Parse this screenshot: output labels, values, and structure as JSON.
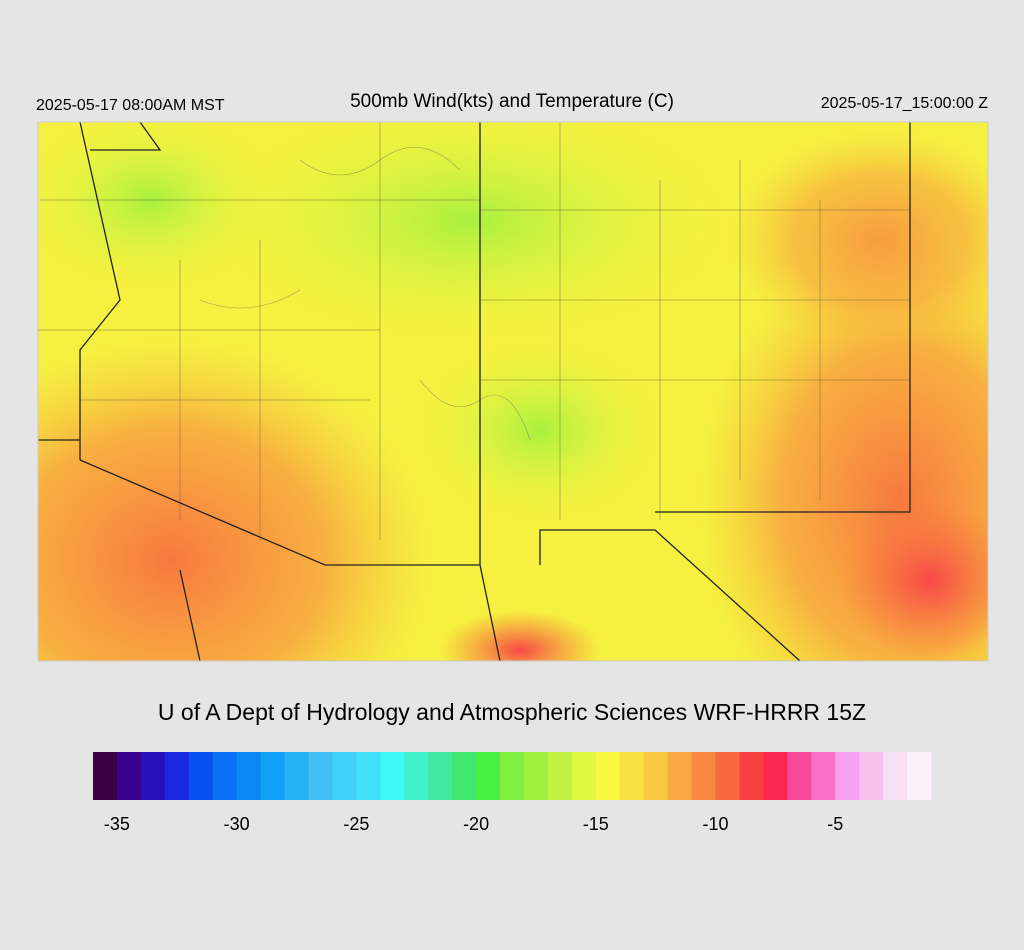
{
  "header": {
    "local_time": "2025-05-17 08:00AM MST",
    "title": "500mb Wind(kts) and Temperature (C)",
    "utc_time": "2025-05-17_15:00:00 Z"
  },
  "footer": {
    "credit": "U of A Dept of Hydrology and Atmospheric Sciences WRF-HRRR 15Z"
  },
  "colorbar": {
    "range": [
      -36,
      -1
    ],
    "colors": [
      "#3a0040",
      "#3a0090",
      "#2a10b8",
      "#1a28e0",
      "#0a50f0",
      "#0a70f5",
      "#0a88f5",
      "#10a0f5",
      "#28b0f5",
      "#40c0f5",
      "#40d0f8",
      "#40e0fa",
      "#40f8f8",
      "#40f0c8",
      "#40e8a0",
      "#40e870",
      "#48f040",
      "#80f040",
      "#a0f040",
      "#c0f040",
      "#e0f840",
      "#f8f840",
      "#f8e040",
      "#f8c840",
      "#f8a840",
      "#f88840",
      "#f86840",
      "#f84040",
      "#f82850",
      "#f84898",
      "#f870c8",
      "#f8a0f0",
      "#f8c0ec",
      "#f8e0f4",
      "#fcf0fc"
    ],
    "ticks": [
      -35,
      -30,
      -25,
      -20,
      -15,
      -10,
      -5
    ]
  }
}
